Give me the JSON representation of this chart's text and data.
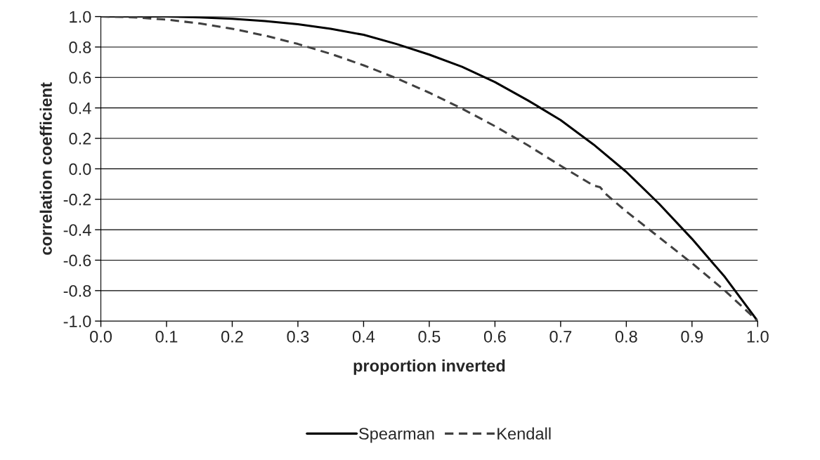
{
  "chart_data": {
    "type": "line",
    "xlabel": "proportion inverted",
    "ylabel": "correlation coefficient",
    "xlim": [
      0.0,
      1.0
    ],
    "ylim": [
      -1.0,
      1.0
    ],
    "xticks": [
      {
        "value": 0.0,
        "label": "0.0"
      },
      0.1,
      0.2,
      0.3,
      0.4,
      0.5,
      0.6,
      0.7,
      0.8,
      0.9,
      {
        "value": 1.0,
        "label": "1.0"
      }
    ],
    "yticks": [
      {
        "value": -1.0,
        "label": "-1.0"
      },
      {
        "value": -0.8,
        "label": "-0.8"
      },
      {
        "value": -0.6,
        "label": "-0.6"
      },
      {
        "value": -0.4,
        "label": "-0.4"
      },
      {
        "value": -0.2,
        "label": "-0.2"
      },
      {
        "value": 0.0,
        "label": "0.0"
      },
      0.2,
      0.4,
      0.6,
      0.8,
      {
        "value": 1.0,
        "label": "1.0"
      }
    ],
    "grid": "y",
    "legend": "bottom",
    "marker": "none",
    "series": [
      {
        "name": "Spearman",
        "color": "#000000",
        "line_style": "solid",
        "x": [
          0,
          0.05,
          0.1,
          0.15,
          0.2,
          0.25,
          0.3,
          0.35,
          0.4,
          0.45,
          0.5,
          0.55,
          0.6,
          0.65,
          0.7,
          0.75,
          0.8,
          0.85,
          0.9,
          0.95,
          1.0
        ],
        "values": [
          1.0,
          1.0,
          1.0,
          0.995,
          0.985,
          0.97,
          0.95,
          0.92,
          0.88,
          0.82,
          0.75,
          0.67,
          0.57,
          0.45,
          0.32,
          0.16,
          -0.02,
          -0.23,
          -0.46,
          -0.71,
          -1.0
        ]
      },
      {
        "name": "Kendall",
        "color": "#404040",
        "line_style": "dashed",
        "x": [
          0,
          0.05,
          0.1,
          0.15,
          0.2,
          0.25,
          0.3,
          0.35,
          0.4,
          0.45,
          0.5,
          0.55,
          0.6,
          0.65,
          0.7,
          0.75,
          0.76,
          0.77,
          0.8,
          0.85,
          0.9,
          0.95,
          1.0
        ],
        "values": [
          1.0,
          0.995,
          0.98,
          0.955,
          0.92,
          0.875,
          0.82,
          0.755,
          0.68,
          0.595,
          0.5,
          0.395,
          0.28,
          0.155,
          0.02,
          -0.11,
          -0.12,
          -0.17,
          -0.28,
          -0.45,
          -0.62,
          -0.8,
          -1.0
        ]
      }
    ]
  }
}
